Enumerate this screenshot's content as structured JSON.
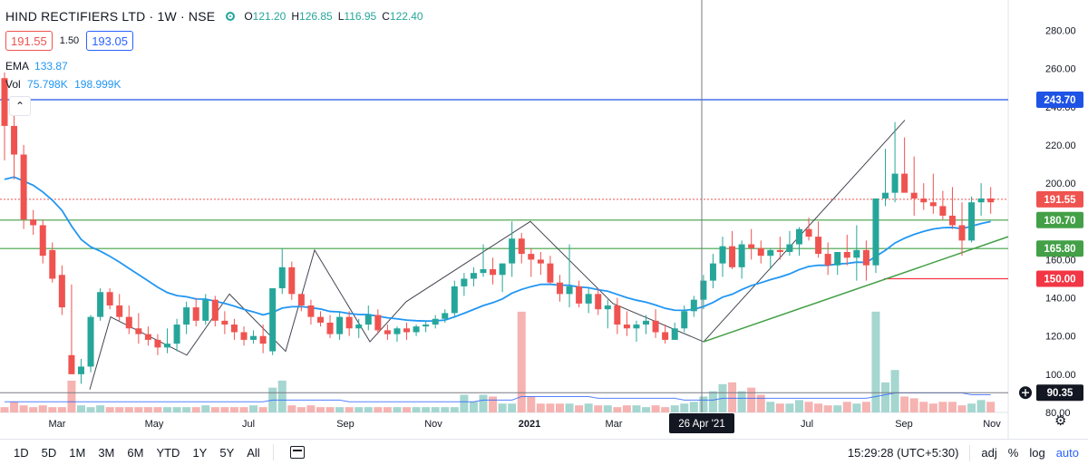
{
  "header": {
    "symbol": "HIND RECTIFIERS LTD · 1W · NSE",
    "ohlc": {
      "o_label": "O",
      "o": "121.20",
      "h_label": "H",
      "h": "126.85",
      "l_label": "L",
      "l": "116.95",
      "c_label": "C",
      "c": "122.40"
    },
    "bid": "191.55",
    "spread": "1.50",
    "ask": "193.05",
    "ema_label": "EMA",
    "ema_value": "133.87",
    "vol_label": "Vol",
    "vol_value_1": "75.798K",
    "vol_value_2": "198.999K",
    "collapse_glyph": "⌃"
  },
  "colors": {
    "up": "#26a69a",
    "down": "#ef5350",
    "ema": "#2196f3",
    "support": "#43a047",
    "resist_blue": "#1e53e5",
    "red_line": "#f23645",
    "pattern": "#434651"
  },
  "chart_data": {
    "type": "candlestick",
    "timeframe": "1W",
    "y_axis": {
      "min": 80,
      "max": 285,
      "ticks": [
        "280.00",
        "260.00",
        "240.00",
        "220.00",
        "200.00",
        "180.00",
        "160.00",
        "140.00",
        "120.00",
        "100.00",
        "80.00"
      ]
    },
    "x_axis": {
      "ticks": [
        "Mar",
        "May",
        "Jul",
        "Sep",
        "Nov",
        "2021",
        "Mar",
        "Jul",
        "Sep",
        "Nov"
      ]
    },
    "crosshair": {
      "date_label": "26 Apr '21",
      "price_label": "90.35",
      "price": 90.35
    },
    "price_lines": [
      {
        "name": "blue-resistance",
        "value": 243.7,
        "label": "243.70",
        "color": "#1e53e5"
      },
      {
        "name": "last-price",
        "value": 191.55,
        "label": "191.55",
        "color": "#ef5350"
      },
      {
        "name": "green-upper",
        "value": 180.7,
        "label": "180.70",
        "color": "#43a047"
      },
      {
        "name": "green-lower",
        "value": 165.8,
        "label": "165.80",
        "color": "#43a047"
      },
      {
        "name": "red-stop",
        "value": 150.0,
        "label": "150.00",
        "color": "#f23645"
      }
    ],
    "candles": [
      [
        255,
        258,
        212,
        230
      ],
      [
        230,
        236,
        202,
        215
      ],
      [
        215,
        220,
        176,
        181
      ],
      [
        181,
        186,
        173,
        178
      ],
      [
        178,
        181,
        158,
        162
      ],
      [
        165,
        169,
        148,
        150
      ],
      [
        152,
        157,
        131,
        135
      ],
      [
        110,
        147,
        100,
        100
      ],
      [
        100,
        108,
        95,
        104
      ],
      [
        104,
        131,
        101,
        130
      ],
      [
        130,
        145,
        128,
        143
      ],
      [
        143,
        145,
        134,
        136
      ],
      [
        136,
        142,
        128,
        130
      ],
      [
        130,
        136,
        121,
        124
      ],
      [
        124,
        132,
        116,
        121
      ],
      [
        121,
        125,
        115,
        118
      ],
      [
        118,
        121,
        110,
        114
      ],
      [
        114,
        124,
        111,
        116
      ],
      [
        116,
        129,
        112,
        126
      ],
      [
        126,
        138,
        121,
        135
      ],
      [
        135,
        140,
        125,
        128
      ],
      [
        128,
        142,
        126,
        139
      ],
      [
        139,
        141,
        125,
        128
      ],
      [
        128,
        133,
        121,
        126
      ],
      [
        126,
        129,
        118,
        122
      ],
      [
        122,
        125,
        115,
        118
      ],
      [
        118,
        123,
        116,
        120
      ],
      [
        120,
        126,
        111,
        116
      ],
      [
        112,
        145,
        110,
        145
      ],
      [
        145,
        166,
        142,
        156
      ],
      [
        156,
        159,
        139,
        142
      ],
      [
        142,
        142,
        133,
        136
      ],
      [
        136,
        139,
        126,
        130
      ],
      [
        130,
        133,
        125,
        127
      ],
      [
        127,
        131,
        119,
        121
      ],
      [
        121,
        133,
        118,
        130
      ],
      [
        130,
        133,
        120,
        124
      ],
      [
        124,
        129,
        119,
        126
      ],
      [
        126,
        136,
        123,
        131
      ],
      [
        131,
        134,
        121,
        123
      ],
      [
        123,
        126,
        118,
        121
      ],
      [
        121,
        125,
        117,
        124
      ],
      [
        124,
        127,
        118,
        122
      ],
      [
        122,
        126,
        120,
        125
      ],
      [
        125,
        128,
        122,
        126
      ],
      [
        126,
        131,
        124,
        129
      ],
      [
        129,
        134,
        127,
        132
      ],
      [
        132,
        149,
        130,
        146
      ],
      [
        146,
        153,
        141,
        150
      ],
      [
        150,
        156,
        146,
        153
      ],
      [
        153,
        168,
        151,
        155
      ],
      [
        155,
        161,
        147,
        152
      ],
      [
        152,
        158,
        143,
        158
      ],
      [
        158,
        180,
        151,
        171
      ],
      [
        171,
        174,
        158,
        163
      ],
      [
        163,
        166,
        151,
        160
      ],
      [
        160,
        164,
        152,
        158
      ],
      [
        158,
        162,
        147,
        148
      ],
      [
        148,
        152,
        138,
        142
      ],
      [
        142,
        168,
        135,
        146
      ],
      [
        146,
        149,
        135,
        137
      ],
      [
        137,
        145,
        132,
        142
      ],
      [
        142,
        145,
        131,
        134
      ],
      [
        134,
        139,
        124,
        136
      ],
      [
        136,
        140,
        121,
        126
      ],
      [
        126,
        133,
        120,
        124
      ],
      [
        124,
        128,
        117,
        126
      ],
      [
        126,
        131,
        121,
        128
      ],
      [
        128,
        134,
        119,
        122
      ],
      [
        122,
        126,
        116,
        118
      ],
      [
        118,
        127,
        118,
        124
      ],
      [
        124,
        136,
        122,
        133
      ],
      [
        133,
        141,
        130,
        139
      ],
      [
        139,
        152,
        134,
        149
      ],
      [
        149,
        163,
        145,
        158
      ],
      [
        158,
        172,
        151,
        167
      ],
      [
        167,
        175,
        155,
        156
      ],
      [
        156,
        170,
        150,
        168
      ],
      [
        168,
        176,
        160,
        166
      ],
      [
        166,
        170,
        158,
        162
      ],
      [
        162,
        166,
        155,
        165
      ],
      [
        165,
        172,
        160,
        164
      ],
      [
        164,
        175,
        162,
        168
      ],
      [
        168,
        177,
        162,
        176
      ],
      [
        176,
        182,
        170,
        172
      ],
      [
        172,
        180,
        161,
        163
      ],
      [
        163,
        169,
        152,
        157
      ],
      [
        157,
        164,
        152,
        164
      ],
      [
        164,
        173,
        157,
        161
      ],
      [
        161,
        178,
        149,
        165
      ],
      [
        165,
        170,
        149,
        157
      ],
      [
        157,
        190,
        153,
        192
      ],
      [
        192,
        218,
        188,
        195
      ],
      [
        195,
        232,
        190,
        205
      ],
      [
        205,
        224,
        196,
        195
      ],
      [
        195,
        214,
        183,
        192
      ],
      [
        192,
        200,
        186,
        190
      ],
      [
        190,
        205,
        184,
        188
      ],
      [
        188,
        196,
        181,
        183
      ],
      [
        183,
        198,
        176,
        178
      ],
      [
        178,
        190,
        162,
        170
      ],
      [
        170,
        193,
        169,
        190
      ],
      [
        190,
        200,
        183,
        192
      ],
      [
        192,
        198,
        184,
        190
      ]
    ],
    "volume": [
      3,
      6,
      4,
      3,
      4,
      3,
      3,
      18,
      4,
      3,
      4,
      3,
      3,
      3,
      3,
      3,
      3,
      3,
      3,
      3,
      3,
      4,
      3,
      3,
      3,
      3,
      4,
      3,
      14,
      18,
      4,
      3,
      4,
      3,
      3,
      3,
      3,
      3,
      3,
      3,
      3,
      3,
      3,
      3,
      3,
      3,
      3,
      3,
      10,
      6,
      10,
      9,
      5,
      5,
      57,
      9,
      5,
      5,
      5,
      5,
      4,
      5,
      4,
      4,
      3,
      4,
      4,
      3,
      4,
      3,
      4,
      5,
      6,
      9,
      12,
      16,
      17,
      12,
      14,
      10,
      6,
      5,
      5,
      7,
      6,
      5,
      4,
      4,
      6,
      5,
      6,
      57,
      17,
      24,
      9,
      8,
      6,
      5,
      6,
      6,
      4,
      5,
      7,
      6
    ],
    "volume_ma": [
      6,
      6,
      6,
      6,
      6,
      6,
      6,
      6,
      6,
      6,
      6,
      6,
      6,
      6,
      6,
      6,
      6,
      6,
      6,
      6,
      6,
      6,
      6,
      6,
      6,
      6,
      6,
      6,
      7,
      7,
      7,
      7,
      7,
      7,
      7,
      7,
      6,
      6,
      6,
      6,
      6,
      6,
      6,
      6,
      6,
      6,
      6,
      6,
      6,
      6,
      7,
      7,
      7,
      7,
      9,
      9,
      9,
      9,
      9,
      9,
      9,
      9,
      8,
      8,
      8,
      8,
      8,
      8,
      8,
      8,
      8,
      7,
      7,
      7,
      7,
      8,
      8,
      8,
      8,
      8,
      8,
      8,
      8,
      8,
      8,
      8,
      8,
      8,
      8,
      8,
      8,
      9,
      10,
      11,
      11,
      11,
      11,
      11,
      11,
      11,
      11,
      10,
      10,
      10
    ]
  },
  "bottombar": {
    "timeframes": [
      "1D",
      "5D",
      "1M",
      "3M",
      "6M",
      "YTD",
      "1Y",
      "5Y",
      "All"
    ],
    "clock": "15:29:28 (UTC+5:30)",
    "adj": "adj",
    "percent": "%",
    "log": "log",
    "auto": "auto"
  }
}
